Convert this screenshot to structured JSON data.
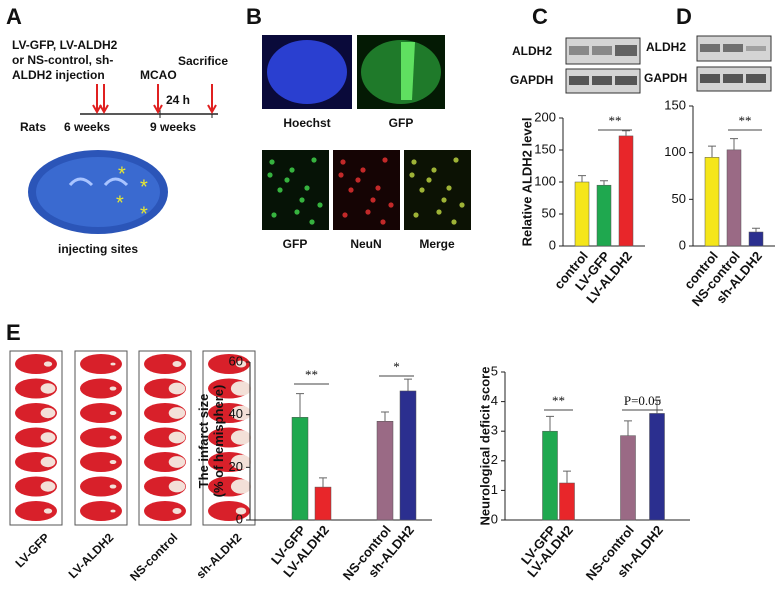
{
  "panel_labels": [
    "A",
    "B",
    "C",
    "D",
    "E"
  ],
  "panel_a": {
    "injection_text": [
      "LV-GFP, LV-ALDH2",
      "or NS-control, sh-",
      "ALDH2 injection"
    ],
    "sacrifice": "Sacrifice",
    "mcao": "MCAO",
    "duration": "24 h",
    "subject": "Rats",
    "age_start": "6 weeks",
    "age_end": "9 weeks",
    "image_caption": "injecting sites"
  },
  "panel_b": {
    "top_captions": [
      "Hoechst",
      "GFP"
    ],
    "bottom_captions": [
      "GFP",
      "NeuN",
      "Merge"
    ]
  },
  "blots": {
    "c": [
      "ALDH2",
      "GAPDH"
    ],
    "d": [
      "ALDH2",
      "GAPDH"
    ]
  },
  "panel_e": {
    "slice_groups": [
      "LV-GFP",
      "LV-ALDH2",
      "NS-control",
      "sh-ALDH2"
    ]
  },
  "chart_data": [
    {
      "type": "bar",
      "y_label": [
        "Relative ALDH2 level"
      ],
      "categories": [
        "control",
        "LV-GFP",
        "LV-ALDH2"
      ],
      "values": [
        100,
        95,
        172
      ],
      "errors": [
        10,
        7,
        8
      ],
      "colors": [
        "#f5e61a",
        "#1fa84f",
        "#e8262a"
      ],
      "ylim": [
        0,
        200
      ],
      "yticks": [
        0,
        50,
        100,
        150,
        200
      ],
      "annotations": [
        "**"
      ]
    },
    {
      "type": "bar",
      "categories": [
        "control",
        "NS-control",
        "sh-ALDH2"
      ],
      "values": [
        95,
        103,
        15
      ],
      "errors": [
        12,
        12,
        4
      ],
      "colors": [
        "#f5e61a",
        "#9a6a85",
        "#2b2f8f"
      ],
      "ylim": [
        0,
        150
      ],
      "yticks": [
        0,
        50,
        100,
        150
      ],
      "annotations": [
        "**"
      ]
    },
    {
      "type": "bar",
      "y_label": [
        "The infarct size",
        "(% of hemisphere)"
      ],
      "categories": [
        "LV-GFP",
        "LV-ALDH2",
        "NS-control",
        "sh-ALDH2"
      ],
      "values": [
        39,
        12.5,
        37.5,
        49
      ],
      "errors": [
        9,
        3.5,
        3.5,
        4.5
      ],
      "colors": [
        "#1fa84f",
        "#e8262a",
        "#9a6a85",
        "#2b2f8f"
      ],
      "ylim": [
        0,
        60
      ],
      "yticks": [
        0,
        20,
        40,
        60
      ],
      "annotations": [
        "**",
        "*"
      ]
    },
    {
      "type": "bar",
      "y_label": [
        "Neurological deficit score"
      ],
      "categories": [
        "LV-GFP",
        "LV-ALDH2",
        "NS-control",
        "sh-ALDH2"
      ],
      "values": [
        3,
        1.25,
        2.85,
        3.6
      ],
      "errors": [
        0.5,
        0.4,
        0.5,
        0.45
      ],
      "colors": [
        "#1fa84f",
        "#e8262a",
        "#9a6a85",
        "#2b2f8f"
      ],
      "ylim": [
        0,
        5
      ],
      "yticks": [
        0,
        1,
        2,
        3,
        4,
        5
      ],
      "annotations": [
        "**",
        "P=0.05"
      ]
    }
  ]
}
